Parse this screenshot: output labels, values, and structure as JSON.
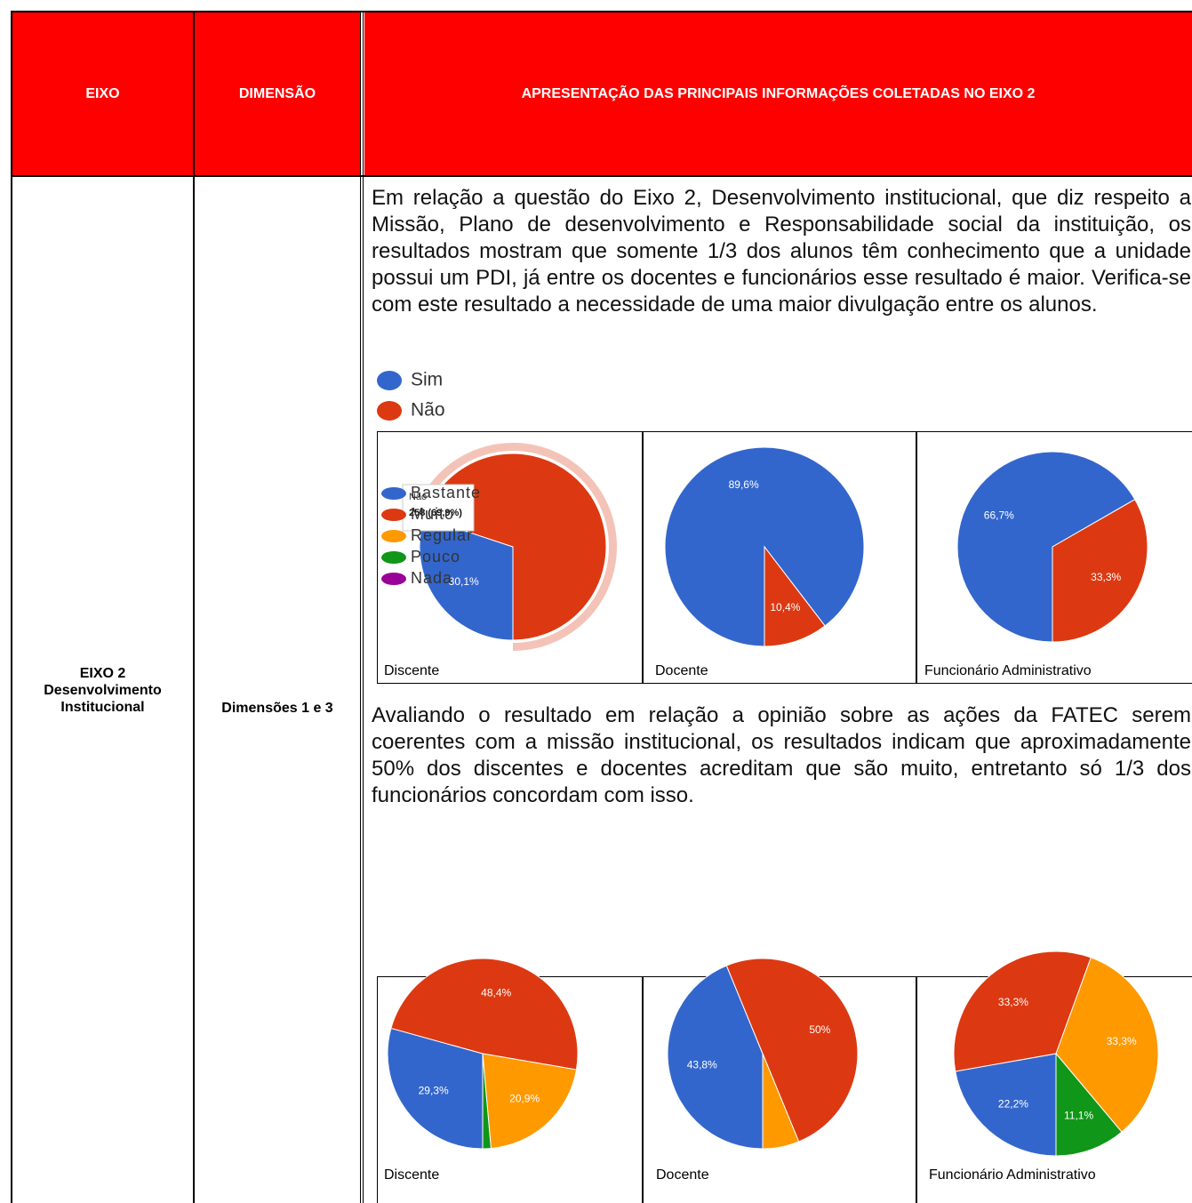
{
  "header": {
    "eixo": "EIXO",
    "dimensao": "DIMENSÃO",
    "apresentacao": "APRESENTAÇÃO DAS PRINCIPAIS INFORMAÇÕES COLETADAS NO EIXO 2"
  },
  "row": {
    "eixo_title": "EIXO 2",
    "eixo_name": "Desenvolvimento Institucional",
    "dimensao": "Dimensões 1 e 3"
  },
  "sections": [
    {
      "text": "Em relação a questão do Eixo 2, Desenvolvimento institucional, que diz respeito a Missão, Plano de desenvolvimento e Responsabilidade social da instituição, os resultados mostram que somente 1/3 dos alunos têm conhecimento que a unidade possui um PDI, já entre os docentes e funcionários esse resultado é maior. Verifica-se com este resultado a necessidade de uma maior divulgação entre os alunos.",
      "categories": [
        "Sim",
        "Não"
      ],
      "colors": [
        "#3366cc",
        "#dc3912"
      ],
      "charts": [
        {
          "type": "pie",
          "caption": "Discente",
          "values": [
            30.1,
            69.9
          ],
          "value_labels": [
            "30,1%",
            null
          ],
          "tooltip": {
            "label": "Não",
            "text": "258 (69,9%)"
          }
        },
        {
          "type": "pie",
          "caption": "Docente",
          "values": [
            89.6,
            10.4
          ],
          "value_labels": [
            "89,6%",
            "10,4%"
          ]
        },
        {
          "type": "pie",
          "caption": "Funcionário Administrativo",
          "values": [
            66.7,
            33.3
          ],
          "value_labels": [
            "66,7%",
            "33,3%"
          ]
        }
      ]
    },
    {
      "text": "Avaliando o resultado em relação a opinião sobre as ações da FATEC serem coerentes com a missão institucional, os resultados indicam que aproximadamente 50% dos discentes e docentes acreditam que são muito, entretanto só 1/3 dos funcionários concordam com isso.",
      "categories": [
        "Bastante",
        "Muito",
        "Regular",
        "Pouco",
        "Nada"
      ],
      "colors": [
        "#3366cc",
        "#dc3912",
        "#ff9900",
        "#109618",
        "#990099"
      ],
      "charts": [
        {
          "type": "pie",
          "caption": "Discente",
          "values": [
            29.3,
            48.4,
            20.9,
            1.4,
            0
          ],
          "value_labels": [
            "29,3%",
            "48,4%",
            "20,9%",
            null,
            null
          ]
        },
        {
          "type": "pie",
          "caption": "Docente",
          "values": [
            43.8,
            50,
            6.2,
            0,
            0
          ],
          "value_labels": [
            "43,8%",
            "50%",
            null,
            null,
            null
          ]
        },
        {
          "type": "pie",
          "caption": "Funcionário Administrativo",
          "values": [
            22.2,
            33.3,
            33.3,
            11.1,
            0
          ],
          "value_labels": [
            "22,2%",
            "33,3%",
            "33,3%",
            "11,1%",
            null
          ]
        }
      ]
    }
  ]
}
